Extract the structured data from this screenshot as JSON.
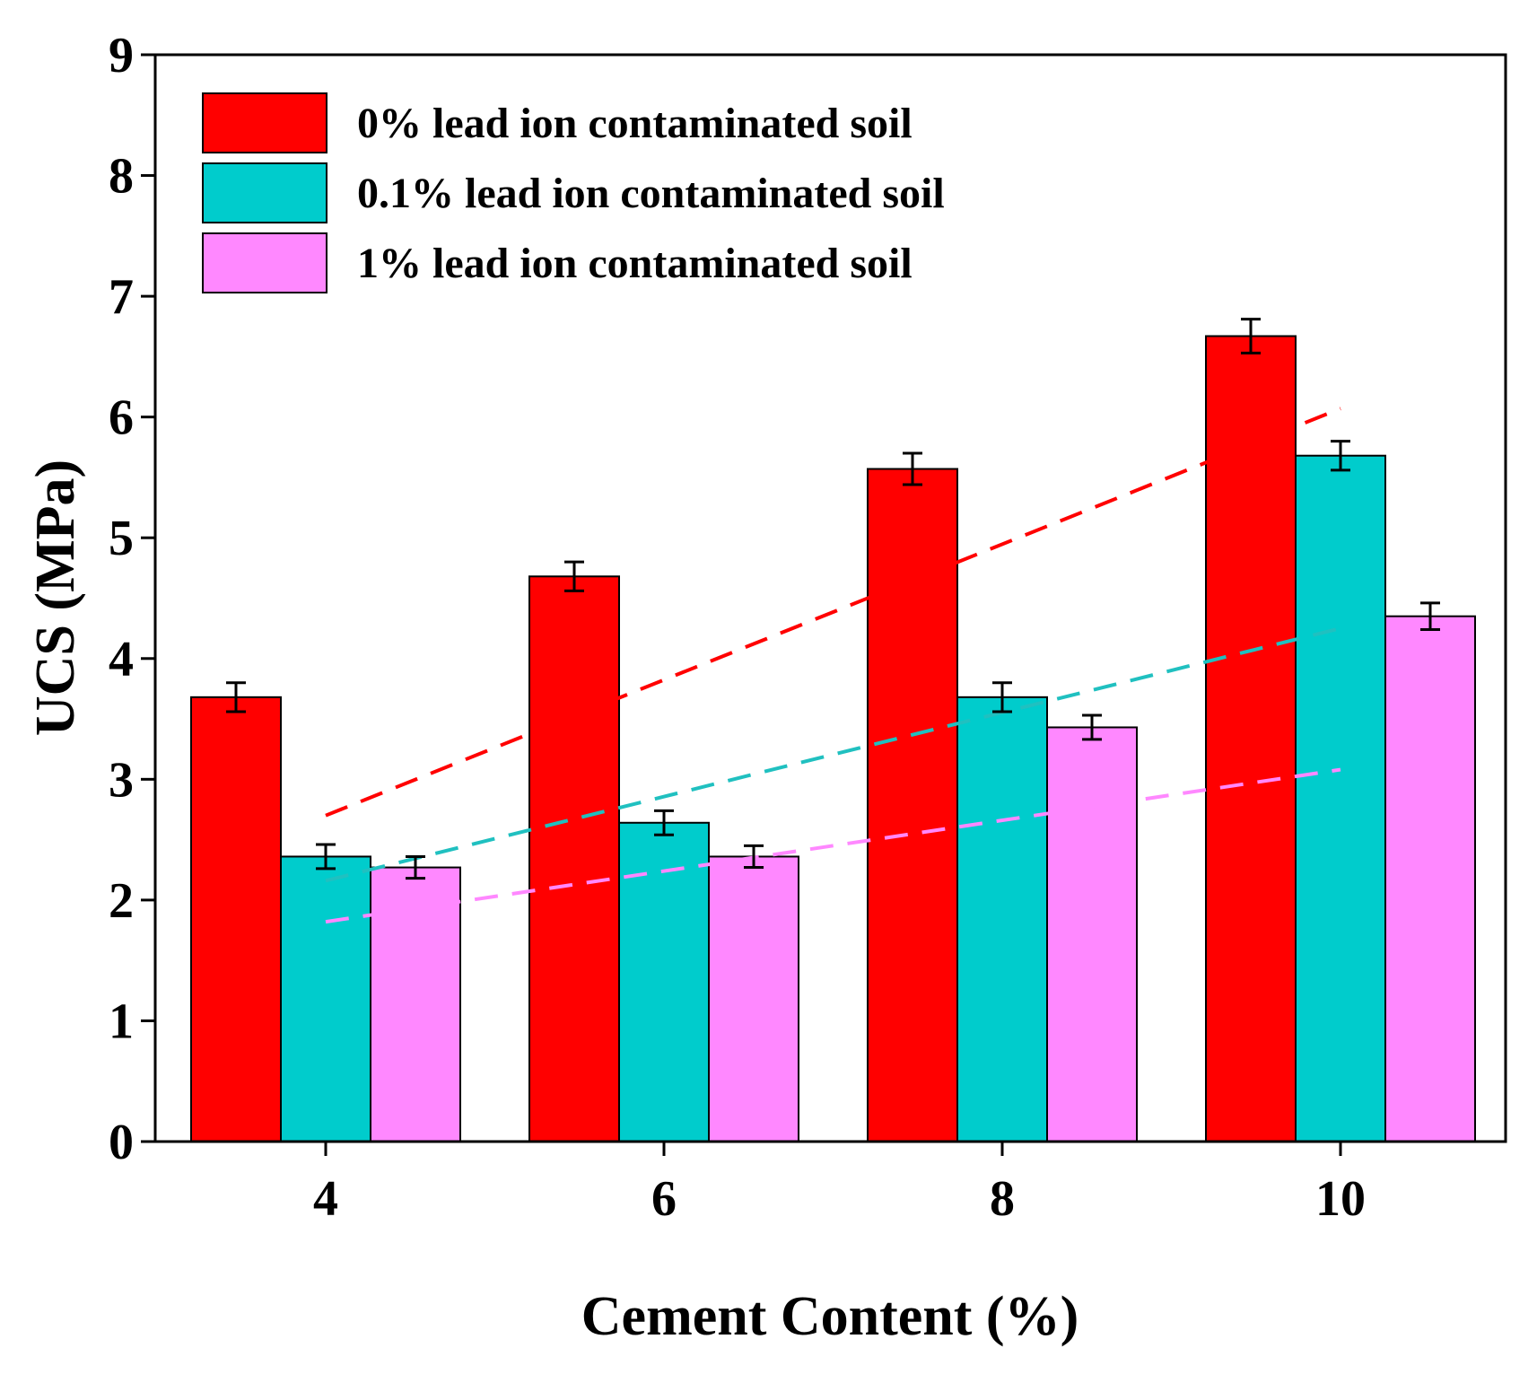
{
  "chart_data": {
    "type": "bar",
    "title": "",
    "xlabel": "Cement Content (%)",
    "ylabel": "UCS (MPa)",
    "ylim": [
      0,
      9
    ],
    "yticks": [
      "0",
      "1",
      "2",
      "3",
      "4",
      "5",
      "6",
      "7",
      "8",
      "9"
    ],
    "categories": [
      "4",
      "6",
      "8",
      "10"
    ],
    "legend_position": "top-left",
    "series": [
      {
        "name": "0% lead ion contaminated soil",
        "color": "#ff0000",
        "values": [
          3.68,
          4.68,
          5.57,
          6.67
        ],
        "errors": [
          0.12,
          0.12,
          0.13,
          0.14
        ]
      },
      {
        "name": "0.1% lead ion contaminated soil",
        "color": "#00cccc",
        "values": [
          2.36,
          2.64,
          3.68,
          5.68
        ],
        "errors": [
          0.1,
          0.1,
          0.12,
          0.12
        ]
      },
      {
        "name": "1% lead ion contaminated soil",
        "color": "#ff88ff",
        "values": [
          2.27,
          2.36,
          3.43,
          4.35
        ],
        "errors": [
          0.09,
          0.09,
          0.1,
          0.11
        ]
      }
    ],
    "trendlines": [
      {
        "series": "0% lead ion contaminated soil",
        "color": "#ff0000",
        "x": [
          4,
          10
        ],
        "y_start": 2.7,
        "y_end": 6.07
      },
      {
        "series": "0.1% lead ion contaminated soil",
        "color": "#20c0c0",
        "x": [
          4,
          10
        ],
        "y_start": 2.16,
        "y_end": 4.25
      },
      {
        "series": "1% lead ion contaminated soil",
        "color": "#ff88ff",
        "x": [
          4,
          10
        ],
        "y_start": 1.82,
        "y_end": 3.08
      }
    ]
  }
}
